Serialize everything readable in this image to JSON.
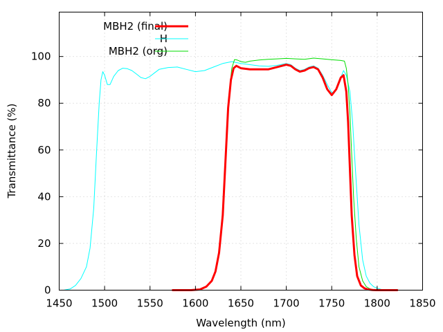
{
  "chart_data": {
    "type": "line",
    "xlabel": "Wavelength (nm)",
    "ylabel": "Transmittance (%)",
    "xlim": [
      1450,
      1850
    ],
    "ylim": [
      0,
      119
    ],
    "xticks": [
      1450,
      1500,
      1550,
      1600,
      1650,
      1700,
      1750,
      1800,
      1850
    ],
    "yticks": [
      0,
      20,
      40,
      60,
      80,
      100
    ],
    "grid": true,
    "legend_position": "top-left",
    "series": [
      {
        "name": "MBH2 (final)",
        "color": "#ff0000",
        "x": [
          1575,
          1595,
          1605,
          1612,
          1618,
          1622,
          1626,
          1630,
          1633,
          1636,
          1639,
          1642,
          1645,
          1650,
          1660,
          1670,
          1680,
          1690,
          1700,
          1705,
          1710,
          1715,
          1720,
          1725,
          1730,
          1735,
          1740,
          1745,
          1750,
          1755,
          1760,
          1763,
          1766,
          1768,
          1770,
          1772,
          1775,
          1778,
          1782,
          1786,
          1790,
          1795,
          1800,
          1810,
          1822
        ],
        "y": [
          0,
          0,
          0.3,
          1.5,
          4,
          8,
          16,
          32,
          55,
          78,
          90,
          95,
          96,
          95,
          94.5,
          94.5,
          94.5,
          95.5,
          96.5,
          96,
          94.5,
          93.5,
          94,
          95,
          95.5,
          94.5,
          91,
          86,
          83.5,
          86,
          91,
          92,
          85,
          72,
          52,
          32,
          15,
          6,
          2,
          0.8,
          0.3,
          0.1,
          0,
          0,
          0
        ]
      },
      {
        "name": "H",
        "color": "#00ffff",
        "x": [
          1455,
          1462,
          1468,
          1474,
          1480,
          1484,
          1488,
          1491,
          1494,
          1496,
          1498,
          1500,
          1503,
          1506,
          1510,
          1515,
          1520,
          1525,
          1530,
          1535,
          1540,
          1545,
          1550,
          1555,
          1560,
          1570,
          1580,
          1590,
          1600,
          1610,
          1620,
          1630,
          1640,
          1650,
          1660,
          1670,
          1680,
          1690,
          1700,
          1705,
          1710,
          1715,
          1720,
          1725,
          1730,
          1735,
          1740,
          1745,
          1750,
          1755,
          1760,
          1763,
          1766,
          1770,
          1773,
          1776,
          1780,
          1784,
          1788,
          1792,
          1796,
          1800,
          1805,
          1810,
          1820
        ],
        "y": [
          0,
          0.5,
          2,
          5,
          10,
          18,
          35,
          58,
          80,
          90,
          93.5,
          92,
          88,
          88,
          91.5,
          94,
          95,
          94.8,
          94,
          92.5,
          91,
          90.5,
          91.5,
          93,
          94.5,
          95.3,
          95.5,
          94.5,
          93.5,
          94,
          95.5,
          97,
          97.8,
          97,
          96.5,
          96,
          95.8,
          96.2,
          97,
          96.5,
          95,
          94,
          94.5,
          95.5,
          96,
          95,
          92,
          88,
          84.5,
          85.5,
          91,
          94,
          92,
          85,
          72,
          52,
          28,
          13,
          6,
          3,
          1.5,
          0.8,
          0.3,
          0.1,
          0
        ]
      },
      {
        "name": "MBH2 (org)",
        "color": "#00dd00",
        "x": [
          1575,
          1595,
          1605,
          1612,
          1618,
          1622,
          1626,
          1630,
          1634,
          1637,
          1640,
          1643,
          1646,
          1650,
          1655,
          1660,
          1670,
          1680,
          1690,
          1700,
          1710,
          1720,
          1730,
          1740,
          1750,
          1760,
          1764,
          1766,
          1768,
          1770,
          1772,
          1774,
          1777,
          1780,
          1784,
          1788,
          1792,
          1796,
          1800,
          1810,
          1822
        ],
        "y": [
          0,
          0,
          0.3,
          1.5,
          4,
          8,
          16,
          35,
          62,
          84,
          95,
          98.7,
          98.5,
          97.8,
          97.5,
          98,
          98.5,
          98.8,
          99,
          99.2,
          99,
          98.8,
          99.3,
          99,
          98.6,
          98.3,
          98,
          95,
          88,
          76,
          58,
          40,
          22,
          10,
          4,
          1.5,
          0.6,
          0.2,
          0,
          0,
          0
        ]
      }
    ]
  }
}
